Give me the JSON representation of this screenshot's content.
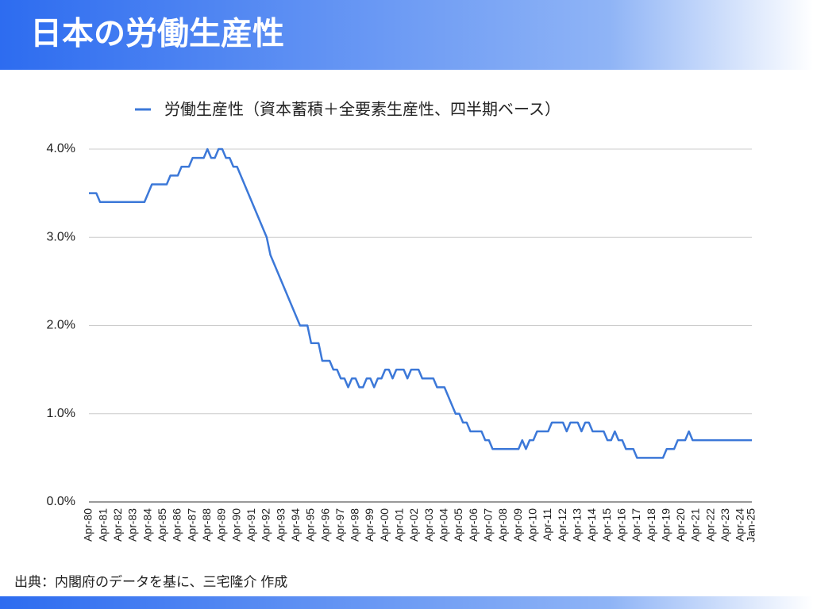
{
  "header": {
    "title": "日本の労働生産性"
  },
  "chart_data": {
    "type": "line",
    "categories": [
      "Apr-80",
      null,
      null,
      null,
      "Apr-81",
      null,
      null,
      null,
      "Apr-82",
      null,
      null,
      null,
      "Apr-83",
      null,
      null,
      null,
      "Apr-84",
      null,
      null,
      null,
      "Apr-85",
      null,
      null,
      null,
      "Apr-86",
      null,
      null,
      null,
      "Apr-87",
      null,
      null,
      null,
      "Apr-88",
      null,
      null,
      null,
      "Apr-89",
      null,
      null,
      null,
      "Apr-90",
      null,
      null,
      null,
      "Apr-91",
      null,
      null,
      null,
      "Apr-92",
      null,
      null,
      null,
      "Apr-93",
      null,
      null,
      null,
      "Apr-94",
      null,
      null,
      null,
      "Apr-95",
      null,
      null,
      null,
      "Apr-96",
      null,
      null,
      null,
      "Apr-97",
      null,
      null,
      null,
      "Apr-98",
      null,
      null,
      null,
      "Apr-99",
      null,
      null,
      null,
      "Apr-00",
      null,
      null,
      null,
      "Apr-01",
      null,
      null,
      null,
      "Apr-02",
      null,
      null,
      null,
      "Apr-03",
      null,
      null,
      null,
      "Apr-04",
      null,
      null,
      null,
      "Apr-05",
      null,
      null,
      null,
      "Apr-06",
      null,
      null,
      null,
      "Apr-07",
      null,
      null,
      null,
      "Apr-08",
      null,
      null,
      null,
      "Apr-09",
      null,
      null,
      null,
      "Apr-10",
      null,
      null,
      null,
      "Apr-11",
      null,
      null,
      null,
      "Apr-12",
      null,
      null,
      null,
      "Apr-13",
      null,
      null,
      null,
      "Apr-14",
      null,
      null,
      null,
      "Apr-15",
      null,
      null,
      null,
      "Apr-16",
      null,
      null,
      null,
      "Apr-17",
      null,
      null,
      null,
      "Apr-18",
      null,
      null,
      null,
      "Apr-19",
      null,
      null,
      null,
      "Apr-20",
      null,
      null,
      null,
      "Apr-21",
      null,
      null,
      null,
      "Apr-22",
      null,
      null,
      null,
      "Apr-23",
      null,
      null,
      null,
      "Apr-24",
      null,
      null,
      "Jan-25"
    ],
    "series": [
      {
        "name": "労働生産性（資本蓄積＋全要素生産性、四半期ベース）",
        "color": "#3c78d8",
        "values": [
          3.5,
          3.5,
          3.5,
          3.4,
          3.4,
          3.4,
          3.4,
          3.4,
          3.4,
          3.4,
          3.4,
          3.4,
          3.4,
          3.4,
          3.4,
          3.4,
          3.5,
          3.6,
          3.6,
          3.6,
          3.6,
          3.6,
          3.7,
          3.7,
          3.7,
          3.8,
          3.8,
          3.8,
          3.9,
          3.9,
          3.9,
          3.9,
          4.0,
          3.9,
          3.9,
          4.0,
          4.0,
          3.9,
          3.9,
          3.8,
          3.8,
          3.7,
          3.6,
          3.5,
          3.4,
          3.3,
          3.2,
          3.1,
          3.0,
          2.8,
          2.7,
          2.6,
          2.5,
          2.4,
          2.3,
          2.2,
          2.1,
          2.0,
          2.0,
          2.0,
          1.8,
          1.8,
          1.8,
          1.6,
          1.6,
          1.6,
          1.5,
          1.5,
          1.4,
          1.4,
          1.3,
          1.4,
          1.4,
          1.3,
          1.3,
          1.4,
          1.4,
          1.3,
          1.4,
          1.4,
          1.5,
          1.5,
          1.4,
          1.5,
          1.5,
          1.5,
          1.4,
          1.5,
          1.5,
          1.5,
          1.4,
          1.4,
          1.4,
          1.4,
          1.3,
          1.3,
          1.3,
          1.2,
          1.1,
          1.0,
          1.0,
          0.9,
          0.9,
          0.8,
          0.8,
          0.8,
          0.8,
          0.7,
          0.7,
          0.6,
          0.6,
          0.6,
          0.6,
          0.6,
          0.6,
          0.6,
          0.6,
          0.7,
          0.6,
          0.7,
          0.7,
          0.8,
          0.8,
          0.8,
          0.8,
          0.9,
          0.9,
          0.9,
          0.9,
          0.8,
          0.9,
          0.9,
          0.9,
          0.8,
          0.9,
          0.9,
          0.8,
          0.8,
          0.8,
          0.8,
          0.7,
          0.7,
          0.8,
          0.7,
          0.7,
          0.6,
          0.6,
          0.6,
          0.5,
          0.5,
          0.5,
          0.5,
          0.5,
          0.5,
          0.5,
          0.5,
          0.6,
          0.6,
          0.6,
          0.7,
          0.7,
          0.7,
          0.8,
          0.7,
          0.7,
          0.7,
          0.7,
          0.7,
          0.7,
          0.7,
          0.7,
          0.7,
          0.7,
          0.7,
          0.7,
          0.7,
          0.7,
          0.7,
          0.7,
          0.7
        ]
      }
    ],
    "ylim": [
      0,
      4
    ],
    "yticks": [
      {
        "value": 0,
        "label": "0.0%"
      },
      {
        "value": 1,
        "label": "1.0%"
      },
      {
        "value": 2,
        "label": "2.0%"
      },
      {
        "value": 3,
        "label": "3.0%"
      },
      {
        "value": 4,
        "label": "4.0%"
      }
    ],
    "grid": true,
    "legend": "top"
  },
  "footer": {
    "source": "出典：内閣府のデータを基に、三宅隆介 作成"
  }
}
